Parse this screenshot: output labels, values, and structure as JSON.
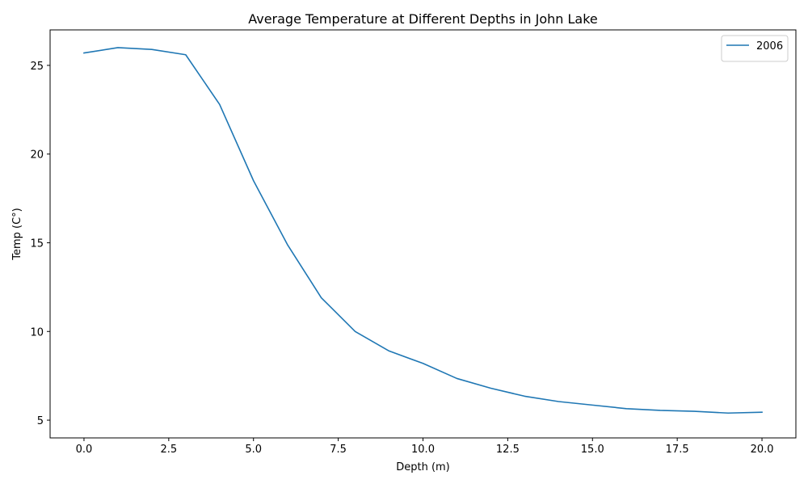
{
  "chart_data": {
    "type": "line",
    "title": "Average Temperature at Different Depths in John Lake",
    "xlabel": "Depth (m)",
    "ylabel": "Temp (C°)",
    "xlim": [
      -1,
      21
    ],
    "ylim": [
      4.0,
      27.0
    ],
    "xticks": [
      0.0,
      2.5,
      5.0,
      7.5,
      10.0,
      12.5,
      15.0,
      17.5,
      20.0
    ],
    "xtick_labels": [
      "0.0",
      "2.5",
      "5.0",
      "7.5",
      "10.0",
      "12.5",
      "15.0",
      "17.5",
      "20.0"
    ],
    "yticks": [
      5,
      10,
      15,
      20,
      25
    ],
    "ytick_labels": [
      "5",
      "10",
      "15",
      "20",
      "25"
    ],
    "grid": false,
    "legend_position": "top-right",
    "series": [
      {
        "name": "2006",
        "color": "#1f77b4",
        "x": [
          0,
          1,
          2,
          3,
          4,
          5,
          6,
          7,
          8,
          9,
          10,
          11,
          12,
          13,
          14,
          15,
          16,
          17,
          18,
          19,
          20
        ],
        "y": [
          25.7,
          26.0,
          25.9,
          25.6,
          22.8,
          18.5,
          14.9,
          11.9,
          10.0,
          8.9,
          8.2,
          7.35,
          6.8,
          6.35,
          6.05,
          5.85,
          5.65,
          5.55,
          5.5,
          5.4,
          5.45
        ]
      }
    ]
  }
}
